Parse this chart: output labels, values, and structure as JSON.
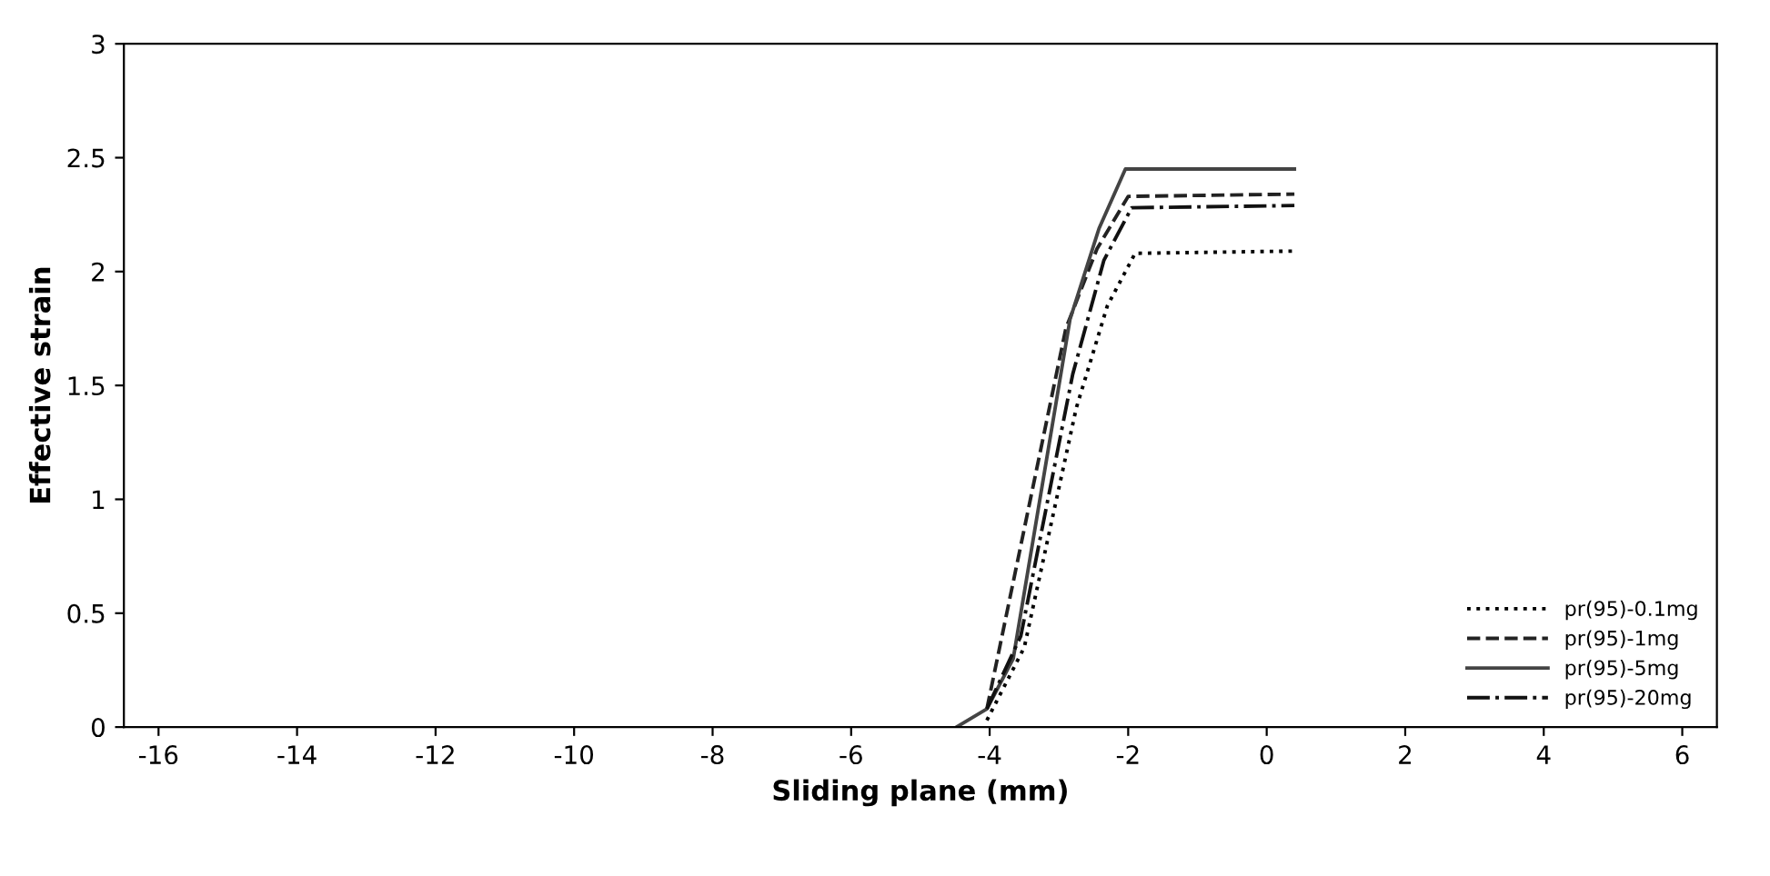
{
  "chart_data": {
    "type": "line",
    "xlabel": "Sliding plane (mm)",
    "ylabel": "Effective strain",
    "xlim": [
      -16.5,
      6.5
    ],
    "xticks": [
      -16,
      -14,
      -12,
      -10,
      -8,
      -6,
      -4,
      -2,
      0,
      2,
      4,
      6
    ],
    "ylim": [
      0,
      3
    ],
    "yticks": [
      0,
      0.5,
      1,
      1.5,
      2,
      2.5,
      3
    ],
    "grid": false,
    "legend": "bottom right",
    "marker": "none",
    "series": [
      {
        "name": "pr(95)-0.1mg",
        "color": "#000000",
        "line_style": "dotted",
        "x": [
          -4.04,
          -3.5,
          -2.75,
          -2.3,
          -1.9,
          0.4
        ],
        "values": [
          0.03,
          0.35,
          1.4,
          1.85,
          2.08,
          2.09
        ]
      },
      {
        "name": "pr(95)-1mg",
        "color": "#222222",
        "line_style": "dashed",
        "x": [
          -4.04,
          -2.9,
          -2.45,
          -2.0,
          0.4
        ],
        "values": [
          0.08,
          1.75,
          2.1,
          2.33,
          2.34
        ]
      },
      {
        "name": "pr(95)-5mg",
        "color": "#444444",
        "line_style": "solid",
        "x": [
          -4.48,
          -4.04,
          -3.66,
          -2.84,
          -2.42,
          -2.04,
          0.4
        ],
        "values": [
          0,
          0.08,
          0.3,
          1.79,
          2.19,
          2.45,
          2.45
        ]
      },
      {
        "name": "pr(95)-20mg",
        "color": "#111111",
        "line_style": "dashdot",
        "x": [
          -4.04,
          -3.55,
          -2.8,
          -2.35,
          -1.95,
          0.4
        ],
        "values": [
          0.08,
          0.4,
          1.55,
          2.05,
          2.28,
          2.29
        ]
      }
    ]
  }
}
